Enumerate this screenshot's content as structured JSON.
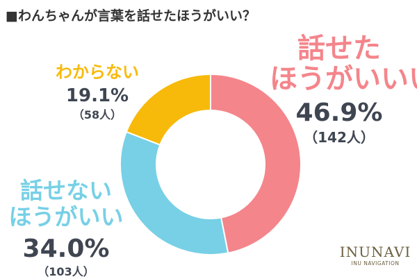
{
  "title": "■わんちゃんが言葉を話せたほうがいい？",
  "brand": {
    "name": "INUNAVI",
    "tagline": "INU NAVIGATION"
  },
  "chart_data": {
    "type": "pie",
    "donut": true,
    "slices": [
      {
        "label_lines": [
          "話せた",
          "ほうがいいい"
        ],
        "percent_text": "46.9%",
        "count_text": "（142人）",
        "value": 46.9,
        "color": "#f4858b"
      },
      {
        "label_lines": [
          "話せない",
          "ほうがいい"
        ],
        "percent_text": "34.0%",
        "count_text": "（103人）",
        "value": 34.0,
        "color": "#77d0e6"
      },
      {
        "label_lines": [
          "わからない"
        ],
        "percent_text": "19.1%",
        "count_text": "（58人）",
        "value": 19.1,
        "color": "#f7ba0b"
      }
    ]
  }
}
